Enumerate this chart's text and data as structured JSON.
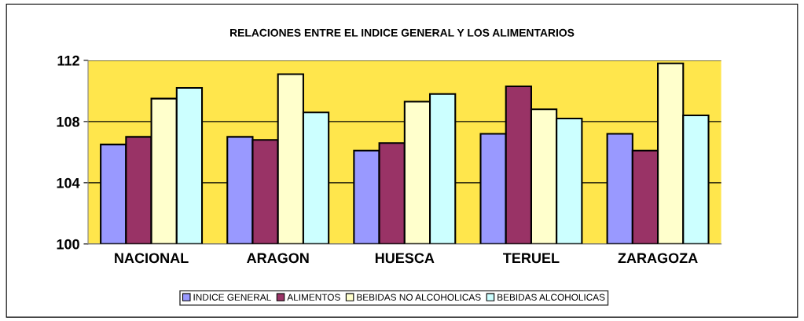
{
  "chart_data": {
    "type": "bar",
    "title": "RELACIONES ENTRE EL INDICE GENERAL Y LOS ALIMENTARIOS",
    "categories": [
      "NACIONAL",
      "ARAGON",
      "HUESCA",
      "TERUEL",
      "ZARAGOZA"
    ],
    "series": [
      {
        "name": "INDICE GENERAL",
        "color": "#9999ff",
        "values": [
          106.5,
          107.0,
          106.1,
          107.2,
          107.2
        ]
      },
      {
        "name": "ALIMENTOS",
        "color": "#993366",
        "values": [
          107.0,
          106.8,
          106.6,
          110.3,
          106.1
        ]
      },
      {
        "name": "BEBIDAS NO ALCOHOLICAS",
        "color": "#ffffcc",
        "values": [
          109.5,
          111.1,
          109.3,
          108.8,
          111.8
        ]
      },
      {
        "name": "BEBIDAS ALCOHOLICAS",
        "color": "#ccffff",
        "values": [
          110.2,
          108.6,
          109.8,
          108.2,
          108.4
        ]
      }
    ],
    "ylim": [
      100,
      112
    ],
    "yticks": [
      100,
      104,
      108,
      112
    ],
    "grid": "y",
    "legend": "bottom"
  }
}
